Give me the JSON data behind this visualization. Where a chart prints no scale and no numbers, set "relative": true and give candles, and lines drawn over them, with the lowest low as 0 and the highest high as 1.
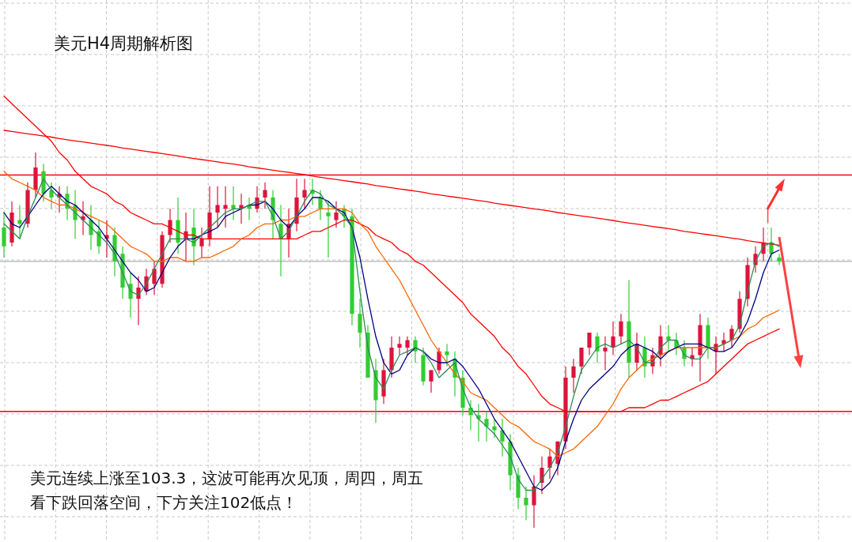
{
  "chart_data": {
    "type": "candlestick",
    "title": "美元H4周期解析图",
    "annotations": [
      "美元连续上涨至103.3，这波可能再次见顶，周四，周五",
      "看下跌回落空间，下方关注102低点！"
    ],
    "relative": true,
    "grid": true,
    "marker": "none",
    "line_style": "solid",
    "categories": [
      null,
      null,
      null,
      null,
      null,
      null,
      null,
      null,
      null,
      null,
      null,
      null,
      null,
      null,
      null,
      null,
      null,
      null,
      null,
      null,
      null,
      null,
      null,
      null,
      null,
      null,
      null,
      null,
      null,
      null,
      null,
      null,
      null,
      null,
      null,
      null,
      null,
      null,
      null,
      null,
      null,
      null,
      null,
      null,
      null,
      null,
      null,
      null,
      null,
      null,
      null,
      null,
      null,
      null,
      null,
      null,
      null,
      null,
      null,
      null,
      null,
      null,
      null,
      null,
      null,
      null,
      null,
      null,
      null,
      null,
      null,
      null,
      null,
      null,
      null,
      null,
      null,
      null,
      null,
      null,
      null,
      null,
      null,
      null,
      null,
      null,
      null,
      null,
      null,
      null,
      null,
      null,
      null,
      null,
      null,
      null,
      null,
      null,
      null
    ],
    "ohlc": [
      [
        0.8,
        0.84,
        0.72,
        0.75
      ],
      [
        0.76,
        0.87,
        0.75,
        0.84
      ],
      [
        0.82,
        0.86,
        0.77,
        0.81
      ],
      [
        0.81,
        0.92,
        0.8,
        0.9
      ],
      [
        0.9,
        1.0,
        0.88,
        0.96
      ],
      [
        0.95,
        0.97,
        0.87,
        0.89
      ],
      [
        0.9,
        0.92,
        0.85,
        0.88
      ],
      [
        0.88,
        0.91,
        0.84,
        0.89
      ],
      [
        0.89,
        0.91,
        0.82,
        0.85
      ],
      [
        0.86,
        0.9,
        0.77,
        0.82
      ],
      [
        0.82,
        0.87,
        0.78,
        0.83
      ],
      [
        0.82,
        0.86,
        0.74,
        0.78
      ],
      [
        0.79,
        0.82,
        0.73,
        0.75
      ],
      [
        0.77,
        0.82,
        0.72,
        0.78
      ],
      [
        0.78,
        0.8,
        0.67,
        0.71
      ],
      [
        0.73,
        0.75,
        0.61,
        0.64
      ],
      [
        0.65,
        0.68,
        0.56,
        0.61
      ],
      [
        0.61,
        0.67,
        0.54,
        0.64
      ],
      [
        0.63,
        0.69,
        0.62,
        0.67
      ],
      [
        0.65,
        0.71,
        0.62,
        0.69
      ],
      [
        0.65,
        0.79,
        0.64,
        0.78
      ],
      [
        0.78,
        0.85,
        0.76,
        0.82
      ],
      [
        0.82,
        0.88,
        0.73,
        0.76
      ],
      [
        0.77,
        0.84,
        0.71,
        0.79
      ],
      [
        0.8,
        0.85,
        0.7,
        0.75
      ],
      [
        0.75,
        0.8,
        0.72,
        0.77
      ],
      [
        0.77,
        0.91,
        0.75,
        0.84
      ],
      [
        0.84,
        0.91,
        0.8,
        0.86
      ],
      [
        0.85,
        0.91,
        0.8,
        0.86
      ],
      [
        0.86,
        0.91,
        0.82,
        0.85
      ],
      [
        0.85,
        0.89,
        0.81,
        0.86
      ],
      [
        0.86,
        0.88,
        0.82,
        0.85
      ],
      [
        0.85,
        0.91,
        0.84,
        0.88
      ],
      [
        0.88,
        0.92,
        0.85,
        0.9
      ],
      [
        0.88,
        0.9,
        0.77,
        0.82
      ],
      [
        0.81,
        0.86,
        0.67,
        0.77
      ],
      [
        0.77,
        0.85,
        0.72,
        0.81
      ],
      [
        0.81,
        0.93,
        0.79,
        0.88
      ],
      [
        0.88,
        0.93,
        0.85,
        0.9
      ],
      [
        0.9,
        0.93,
        0.86,
        0.89
      ],
      [
        0.88,
        0.9,
        0.82,
        0.85
      ],
      [
        0.84,
        0.87,
        0.72,
        0.83
      ],
      [
        0.82,
        0.87,
        0.8,
        0.84
      ],
      [
        0.85,
        0.86,
        0.8,
        0.83
      ],
      [
        0.83,
        0.85,
        0.54,
        0.57
      ],
      [
        0.57,
        0.61,
        0.48,
        0.52
      ],
      [
        0.52,
        0.54,
        0.4,
        0.4
      ],
      [
        0.42,
        0.45,
        0.28,
        0.34
      ],
      [
        0.35,
        0.45,
        0.33,
        0.42
      ],
      [
        0.42,
        0.51,
        0.4,
        0.48
      ],
      [
        0.48,
        0.51,
        0.46,
        0.49
      ],
      [
        0.48,
        0.51,
        0.46,
        0.5
      ],
      [
        0.5,
        0.51,
        0.44,
        0.47
      ],
      [
        0.46,
        0.48,
        0.38,
        0.39
      ],
      [
        0.39,
        0.42,
        0.36,
        0.42
      ],
      [
        0.42,
        0.48,
        0.41,
        0.47
      ],
      [
        0.47,
        0.49,
        0.43,
        0.46
      ],
      [
        0.45,
        0.47,
        0.35,
        0.4
      ],
      [
        0.4,
        0.42,
        0.3,
        0.32
      ],
      [
        0.32,
        0.34,
        0.26,
        0.3
      ],
      [
        0.3,
        0.33,
        0.23,
        0.29
      ],
      [
        0.29,
        0.31,
        0.23,
        0.27
      ],
      [
        0.27,
        0.29,
        0.24,
        0.26
      ],
      [
        0.26,
        0.29,
        0.19,
        0.23
      ],
      [
        0.23,
        0.25,
        0.1,
        0.14
      ],
      [
        0.14,
        0.16,
        0.05,
        0.08
      ],
      [
        0.08,
        0.11,
        0.02,
        0.06
      ],
      [
        0.06,
        0.14,
        0.0,
        0.11
      ],
      [
        0.12,
        0.19,
        0.09,
        0.16
      ],
      [
        0.16,
        0.21,
        0.13,
        0.19
      ],
      [
        0.17,
        0.23,
        0.14,
        0.23
      ],
      [
        0.23,
        0.43,
        0.21,
        0.4
      ],
      [
        0.4,
        0.45,
        0.36,
        0.43
      ],
      [
        0.43,
        0.48,
        0.41,
        0.48
      ],
      [
        0.48,
        0.52,
        0.46,
        0.52
      ],
      [
        0.51,
        0.52,
        0.44,
        0.47
      ],
      [
        0.47,
        0.51,
        0.42,
        0.48
      ],
      [
        0.48,
        0.55,
        0.46,
        0.51
      ],
      [
        0.51,
        0.57,
        0.49,
        0.55
      ],
      [
        0.55,
        0.66,
        0.4,
        0.44
      ],
      [
        0.44,
        0.52,
        0.42,
        0.49
      ],
      [
        0.48,
        0.51,
        0.4,
        0.43
      ],
      [
        0.43,
        0.48,
        0.41,
        0.46
      ],
      [
        0.46,
        0.54,
        0.43,
        0.51
      ],
      [
        0.51,
        0.54,
        0.47,
        0.5
      ],
      [
        0.5,
        0.52,
        0.46,
        0.48
      ],
      [
        0.48,
        0.5,
        0.43,
        0.45
      ],
      [
        0.45,
        0.48,
        0.43,
        0.46
      ],
      [
        0.46,
        0.57,
        0.39,
        0.54
      ],
      [
        0.54,
        0.56,
        0.45,
        0.48
      ],
      [
        0.47,
        0.51,
        0.41,
        0.49
      ],
      [
        0.49,
        0.52,
        0.47,
        0.5
      ],
      [
        0.5,
        0.54,
        0.48,
        0.53
      ],
      [
        0.53,
        0.63,
        0.52,
        0.61
      ],
      [
        0.61,
        0.72,
        0.59,
        0.7
      ],
      [
        0.7,
        0.75,
        0.68,
        0.73
      ],
      [
        0.73,
        0.8,
        0.71,
        0.76
      ],
      [
        0.76,
        0.8,
        0.71,
        0.73
      ],
      [
        0.72,
        0.73,
        0.7,
        0.71
      ]
    ],
    "colors": [
      "#32cd32",
      "#dc143c",
      "#32cd32",
      "#dc143c",
      "#dc143c",
      "#32cd32",
      "#32cd32",
      "#dc143c",
      "#32cd32",
      "#32cd32",
      "#dc143c",
      "#32cd32",
      "#32cd32",
      "#dc143c",
      "#32cd32",
      "#32cd32",
      "#32cd32",
      "#dc143c",
      "#dc143c",
      "#dc143c",
      "#dc143c",
      "#dc143c",
      "#32cd32",
      "#dc143c",
      "#32cd32",
      "#dc143c",
      "#dc143c",
      "#dc143c",
      "#dc143c",
      "#32cd32",
      "#dc143c",
      "#32cd32",
      "#dc143c",
      "#dc143c",
      "#32cd32",
      "#32cd32",
      "#dc143c",
      "#dc143c",
      "#dc143c",
      "#32cd32",
      "#32cd32",
      "#32cd32",
      "#dc143c",
      "#32cd32",
      "#32cd32",
      "#32cd32",
      "#32cd32",
      "#32cd32",
      "#dc143c",
      "#dc143c",
      "#dc143c",
      "#dc143c",
      "#32cd32",
      "#32cd32",
      "#dc143c",
      "#dc143c",
      "#32cd32",
      "#32cd32",
      "#32cd32",
      "#32cd32",
      "#32cd32",
      "#32cd32",
      "#32cd32",
      "#32cd32",
      "#32cd32",
      "#32cd32",
      "#32cd32",
      "#dc143c",
      "#dc143c",
      "#dc143c",
      "#dc143c",
      "#dc143c",
      "#dc143c",
      "#dc143c",
      "#dc143c",
      "#32cd32",
      "#dc143c",
      "#dc143c",
      "#dc143c",
      "#32cd32",
      "#dc143c",
      "#32cd32",
      "#dc143c",
      "#dc143c",
      "#32cd32",
      "#32cd32",
      "#32cd32",
      "#dc143c",
      "#dc143c",
      "#32cd32",
      "#dc143c",
      "#dc143c",
      "#dc143c",
      "#dc143c",
      "#dc143c",
      "#dc143c",
      "#dc143c",
      "#32cd32",
      "#32cd32"
    ],
    "series": [
      {
        "type": "line",
        "color": "#ff0000",
        "values": [
          1.059,
          1.056,
          1.053,
          1.05,
          1.047,
          1.044,
          1.041,
          1.037,
          1.034,
          1.031,
          1.028,
          1.025,
          1.022,
          1.019,
          1.016,
          1.012,
          1.009,
          1.006,
          1.003,
          1.0,
          0.997,
          0.994,
          0.991,
          0.987,
          0.984,
          0.981,
          0.978,
          0.975,
          0.972,
          0.969,
          0.966,
          0.962,
          0.959,
          0.956,
          0.953,
          0.95,
          0.947,
          0.944,
          0.941,
          0.937,
          0.934,
          0.931,
          0.928,
          0.925,
          0.922,
          0.919,
          0.916,
          0.912,
          0.909,
          0.906,
          0.903,
          0.9,
          0.897,
          0.894,
          0.89,
          0.887,
          0.884,
          0.881,
          0.878,
          0.875,
          0.872,
          0.869,
          0.865,
          0.862,
          0.859,
          0.856,
          0.853,
          0.85,
          0.847,
          0.844,
          0.84,
          0.837,
          0.834,
          0.831,
          0.828,
          0.825,
          0.822,
          0.819,
          0.815,
          0.812,
          0.809,
          0.806,
          0.803,
          0.8,
          0.797,
          0.794,
          0.79,
          0.787,
          0.784,
          0.781,
          0.778,
          0.775,
          0.772,
          0.769,
          0.765,
          0.762,
          0.759,
          0.756,
          0.753
        ]
      },
      {
        "type": "line",
        "color": "#ff0000",
        "values": [
          1.15,
          1.13,
          1.11,
          1.09,
          1.07,
          1.05,
          1.03,
          1.0,
          0.98,
          0.95,
          0.93,
          0.91,
          0.9,
          0.89,
          0.87,
          0.86,
          0.84,
          0.83,
          0.82,
          0.81,
          0.81,
          0.8,
          0.79,
          0.78,
          0.78,
          0.77,
          0.77,
          0.77,
          0.77,
          0.77,
          0.77,
          0.77,
          0.77,
          0.77,
          0.77,
          0.77,
          0.77,
          0.77,
          0.78,
          0.79,
          0.79,
          0.8,
          0.81,
          0.82,
          0.82,
          0.81,
          0.8,
          0.78,
          0.77,
          0.76,
          0.74,
          0.73,
          0.71,
          0.7,
          0.68,
          0.66,
          0.64,
          0.62,
          0.6,
          0.57,
          0.55,
          0.53,
          0.51,
          0.48,
          0.46,
          0.43,
          0.41,
          0.38,
          0.35,
          0.33,
          0.32,
          0.31,
          0.31,
          0.31,
          0.31,
          0.31,
          0.31,
          0.31,
          0.31,
          0.32,
          0.32,
          0.32,
          0.33,
          0.34,
          0.34,
          0.35,
          0.36,
          0.37,
          0.38,
          0.39,
          0.41,
          0.43,
          0.45,
          0.47,
          0.49,
          0.5,
          0.51,
          0.52,
          0.53
        ]
      },
      {
        "type": "line",
        "color": "#ff6600",
        "values": [
          0.95,
          0.93,
          0.92,
          0.91,
          0.9,
          0.88,
          0.87,
          0.86,
          0.86,
          0.85,
          0.84,
          0.83,
          0.82,
          0.81,
          0.79,
          0.77,
          0.75,
          0.74,
          0.73,
          0.71,
          0.71,
          0.72,
          0.72,
          0.71,
          0.71,
          0.72,
          0.72,
          0.73,
          0.74,
          0.75,
          0.77,
          0.78,
          0.8,
          0.81,
          0.81,
          0.82,
          0.82,
          0.83,
          0.83,
          0.84,
          0.85,
          0.85,
          0.85,
          0.85,
          0.84,
          0.81,
          0.79,
          0.75,
          0.72,
          0.69,
          0.66,
          0.62,
          0.58,
          0.54,
          0.5,
          0.47,
          0.44,
          0.41,
          0.39,
          0.36,
          0.35,
          0.34,
          0.32,
          0.3,
          0.28,
          0.27,
          0.25,
          0.23,
          0.22,
          0.21,
          0.19,
          0.2,
          0.21,
          0.23,
          0.25,
          0.27,
          0.3,
          0.33,
          0.37,
          0.4,
          0.42,
          0.44,
          0.45,
          0.46,
          0.47,
          0.48,
          0.48,
          0.48,
          0.48,
          0.48,
          0.48,
          0.49,
          0.5,
          0.51,
          0.53,
          0.54,
          0.56,
          0.57,
          0.58
        ]
      },
      {
        "type": "line",
        "color": "#000080",
        "values": [
          0.84,
          0.81,
          0.8,
          0.83,
          0.86,
          0.89,
          0.91,
          0.89,
          0.87,
          0.86,
          0.84,
          0.82,
          0.8,
          0.77,
          0.74,
          0.71,
          0.68,
          0.66,
          0.63,
          0.64,
          0.68,
          0.72,
          0.75,
          0.77,
          0.77,
          0.78,
          0.79,
          0.8,
          0.83,
          0.84,
          0.85,
          0.86,
          0.86,
          0.87,
          0.85,
          0.82,
          0.8,
          0.83,
          0.85,
          0.88,
          0.88,
          0.87,
          0.85,
          0.84,
          0.8,
          0.72,
          0.61,
          0.51,
          0.44,
          0.41,
          0.42,
          0.46,
          0.48,
          0.47,
          0.45,
          0.44,
          0.44,
          0.45,
          0.43,
          0.4,
          0.37,
          0.33,
          0.29,
          0.26,
          0.23,
          0.19,
          0.15,
          0.11,
          0.1,
          0.12,
          0.16,
          0.23,
          0.29,
          0.34,
          0.37,
          0.39,
          0.41,
          0.43,
          0.46,
          0.48,
          0.49,
          0.48,
          0.47,
          0.45,
          0.47,
          0.48,
          0.49,
          0.49,
          0.49,
          0.48,
          0.47,
          0.47,
          0.48,
          0.51,
          0.55,
          0.61,
          0.68,
          0.73,
          0.74
        ]
      },
      {
        "type": "line",
        "color": "#2e8b57",
        "values": [
          0.81,
          0.79,
          0.77,
          0.83,
          0.88,
          0.93,
          0.9,
          0.88,
          0.86,
          0.84,
          0.82,
          0.8,
          0.78,
          0.76,
          0.73,
          0.68,
          0.63,
          0.62,
          0.65,
          0.69,
          0.73,
          0.77,
          0.77,
          0.77,
          0.76,
          0.78,
          0.8,
          0.82,
          0.84,
          0.85,
          0.85,
          0.86,
          0.87,
          0.87,
          0.83,
          0.77,
          0.79,
          0.83,
          0.87,
          0.9,
          0.89,
          0.86,
          0.85,
          0.83,
          0.8,
          0.63,
          0.48,
          0.4,
          0.37,
          0.42,
          0.46,
          0.47,
          0.48,
          0.47,
          0.44,
          0.4,
          0.42,
          0.44,
          0.37,
          0.32,
          0.29,
          0.27,
          0.25,
          0.22,
          0.19,
          0.13,
          0.1,
          0.1,
          0.13,
          0.16,
          0.2,
          0.27,
          0.35,
          0.42,
          0.45,
          0.48,
          0.49,
          0.48,
          0.49,
          0.5,
          0.48,
          0.44,
          0.44,
          0.48,
          0.5,
          0.5,
          0.46,
          0.45,
          0.45,
          0.48,
          0.48,
          0.49,
          0.5,
          0.54,
          0.63,
          0.71,
          0.75,
          0.76,
          0.75
        ]
      }
    ],
    "ref_lines": [
      {
        "axis": "y",
        "value": 0.94,
        "color": "#ff0000"
      },
      {
        "axis": "y",
        "value": 0.31,
        "color": "#ff0000"
      },
      {
        "axis": "y",
        "value": 0.71,
        "color": "#c0c0c0"
      }
    ]
  }
}
